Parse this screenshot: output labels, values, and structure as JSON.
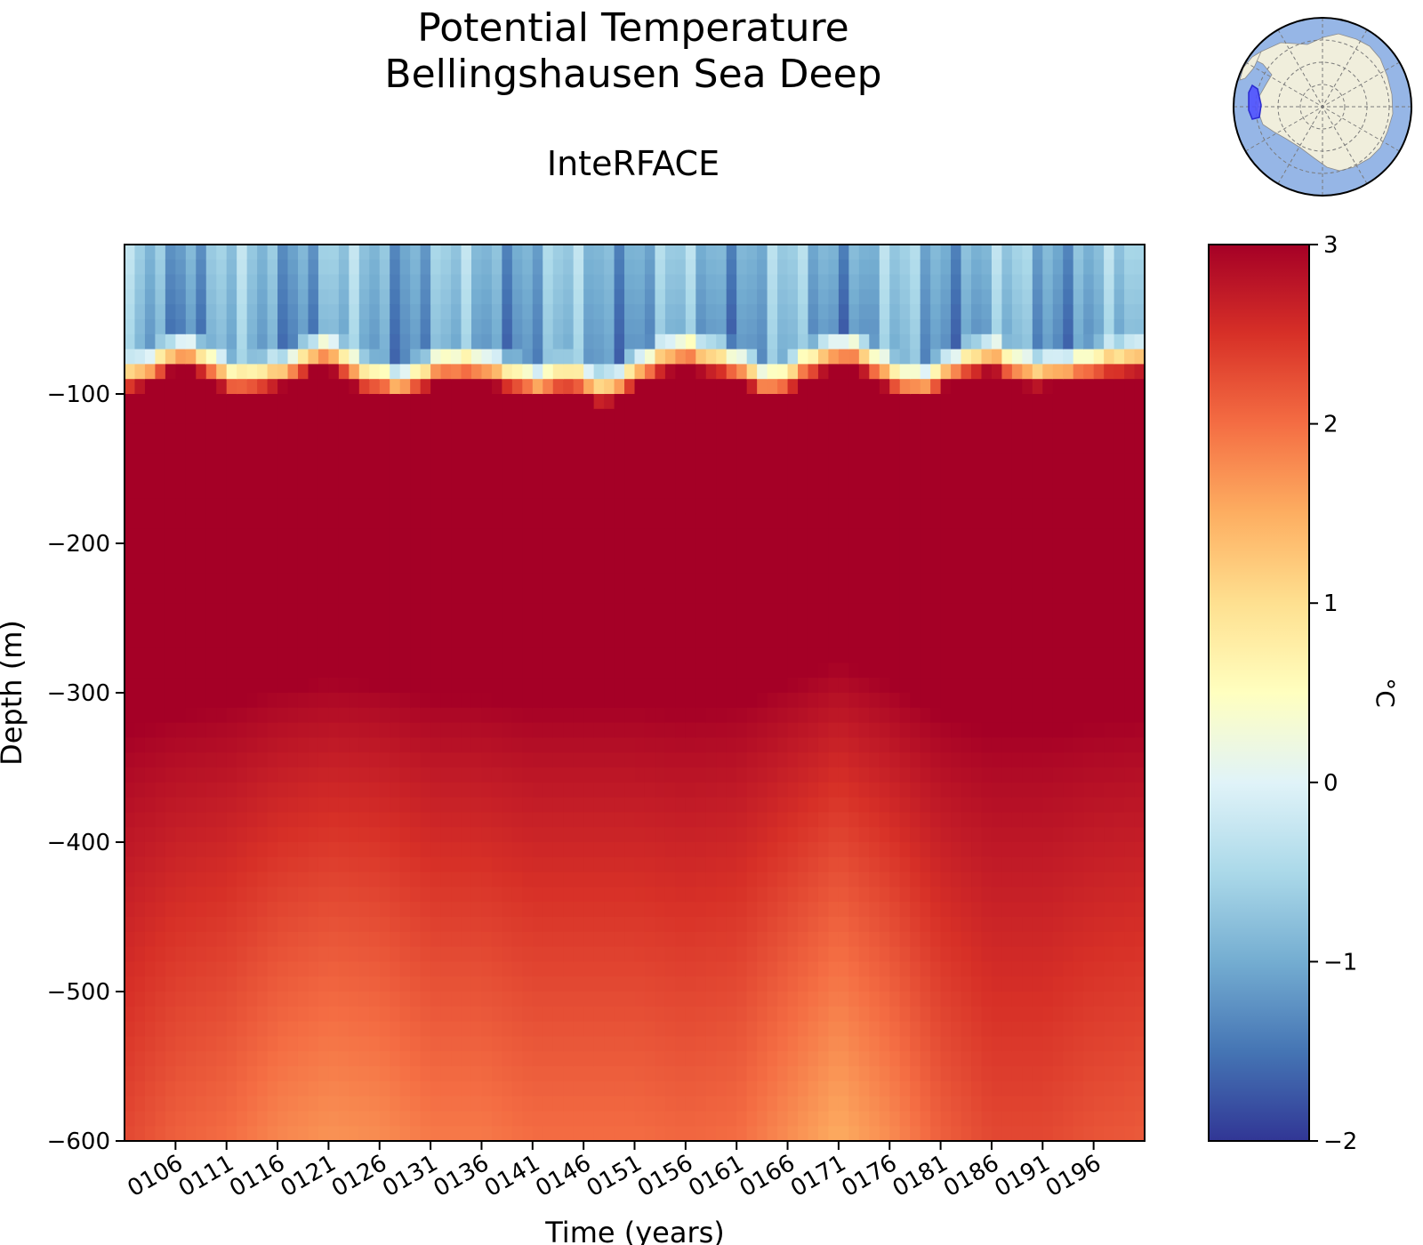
{
  "chart_data": {
    "type": "heatmap",
    "title": "Potential Temperature",
    "subtitle": "Bellingshausen Sea Deep",
    "run_label": "InteRFACE",
    "xlabel": "Time (years)",
    "ylabel": "Depth (m)",
    "colorbar_label": "°C",
    "colormap": "RdYlBu_r",
    "x_range": [
      101,
      201
    ],
    "x_ticks": [
      "0106",
      "0111",
      "0116",
      "0121",
      "0126",
      "0131",
      "0136",
      "0141",
      "0146",
      "0151",
      "0156",
      "0161",
      "0166",
      "0171",
      "0176",
      "0181",
      "0186",
      "0191",
      "0196"
    ],
    "x_tick_years": [
      106,
      111,
      116,
      121,
      126,
      131,
      136,
      141,
      146,
      151,
      156,
      161,
      166,
      171,
      176,
      181,
      186,
      191,
      196
    ],
    "y_range": [
      -600,
      0
    ],
    "y_ticks": [
      "−100",
      "−200",
      "−300",
      "−400",
      "−500",
      "−600"
    ],
    "y_tick_values": [
      -100,
      -200,
      -300,
      -400,
      -500,
      -600
    ],
    "color_range": [
      -2,
      3
    ],
    "colorbar_ticks": [
      "3",
      "2",
      "1",
      "0",
      "−1",
      "−2"
    ],
    "colorbar_tick_values": [
      3,
      2,
      1,
      0,
      -1,
      -2
    ],
    "thermocline_depth_m": {
      "years": [
        101,
        104,
        106,
        108,
        110,
        112,
        116,
        118,
        120,
        122,
        124,
        126,
        128,
        132,
        136,
        138,
        140,
        142,
        144,
        146,
        148,
        152,
        154,
        156,
        158,
        160,
        162,
        164,
        166,
        168,
        170,
        172,
        174,
        176,
        178,
        180,
        182,
        184,
        186,
        188,
        190,
        192,
        194,
        196,
        198,
        201
      ],
      "depths": [
        -88,
        -80,
        -70,
        -72,
        -82,
        -90,
        -84,
        -78,
        -70,
        -74,
        -86,
        -88,
        -92,
        -80,
        -80,
        -84,
        -88,
        -92,
        -86,
        -90,
        -96,
        -80,
        -74,
        -70,
        -74,
        -76,
        -82,
        -92,
        -88,
        -78,
        -72,
        -68,
        -76,
        -86,
        -92,
        -90,
        -80,
        -76,
        -72,
        -80,
        -84,
        -82,
        -80,
        -78,
        -76,
        -74
      ]
    },
    "surface_temp_c": [
      -1.4,
      -0.2
    ],
    "deep_temp_c": {
      "years": [
        101,
        106,
        111,
        116,
        121,
        126,
        131,
        136,
        141,
        146,
        151,
        156,
        161,
        166,
        171,
        176,
        181,
        186,
        191,
        196,
        201
      ],
      "depth_600_c": [
        2.3,
        2.1,
        2.0,
        1.8,
        1.7,
        1.75,
        1.9,
        1.9,
        2.0,
        2.0,
        2.0,
        2.05,
        2.0,
        1.75,
        1.5,
        1.75,
        2.1,
        2.3,
        2.3,
        2.2,
        2.15
      ]
    }
  },
  "inset_map": {
    "region": "Bellingshausen Sea Deep",
    "ocean_color": "#96b6e6",
    "land_color": "#f0eedc",
    "region_color": "#4d4dff"
  }
}
